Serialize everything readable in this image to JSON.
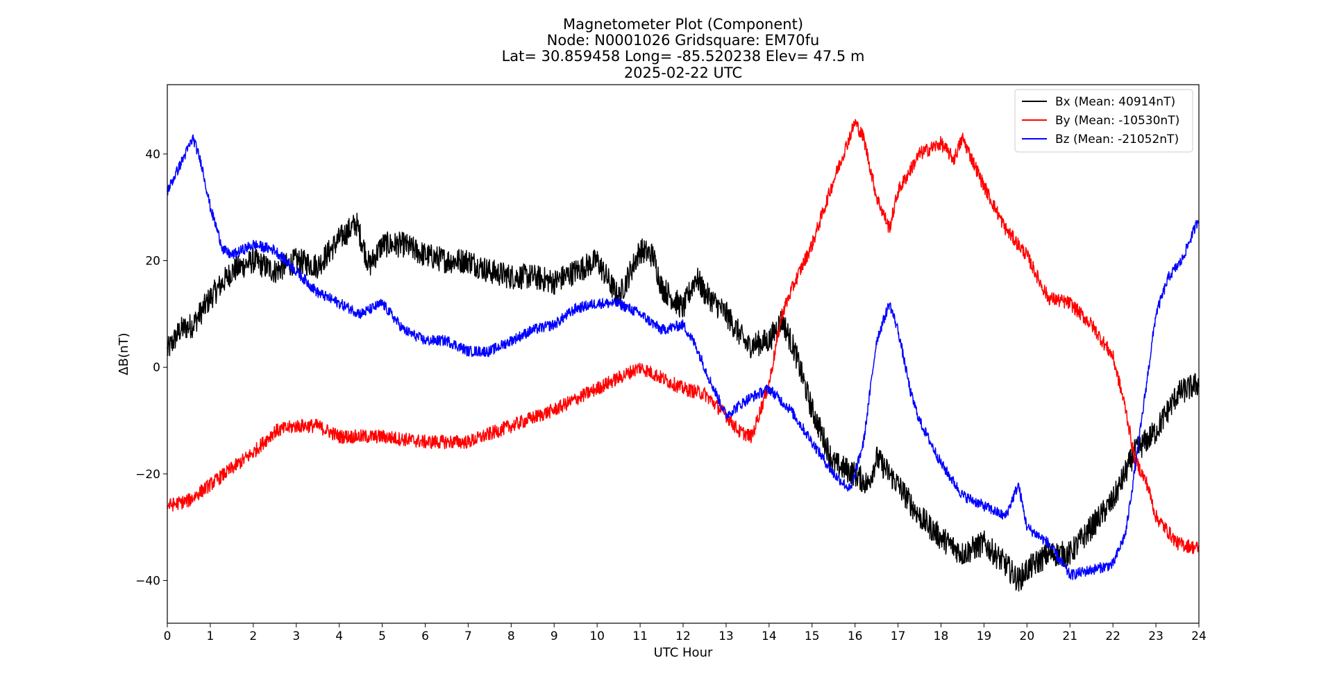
{
  "chart_data": {
    "type": "line",
    "title_lines": [
      "Magnetometer Plot (Component)",
      "Node:  N0001026     Gridsquare:  EM70fu",
      "Lat= 30.859458    Long= -85.520238    Elev= 47.5 m",
      "2025-02-22  UTC"
    ],
    "xlabel": "UTC Hour",
    "ylabel": "ΔB(nT)",
    "xlim": [
      0,
      24
    ],
    "ylim": [
      -48,
      53
    ],
    "xticks": [
      0,
      1,
      2,
      3,
      4,
      5,
      6,
      7,
      8,
      9,
      10,
      11,
      12,
      13,
      14,
      15,
      16,
      17,
      18,
      19,
      20,
      21,
      22,
      23,
      24
    ],
    "yticks": [
      -40,
      -20,
      0,
      20,
      40
    ],
    "ytick_labels": [
      "−40",
      "−20",
      "0",
      "20",
      "40"
    ],
    "grid": false,
    "legend_position": "upper-right",
    "series": [
      {
        "name": "Bx (Mean: 40914nT)",
        "color": "#000000",
        "noise": 2.4,
        "x": [
          0,
          0.3,
          0.6,
          1.0,
          1.5,
          2.0,
          2.5,
          3.0,
          3.5,
          4.0,
          4.4,
          4.7,
          5.0,
          5.5,
          6.0,
          6.5,
          7.0,
          7.5,
          8.0,
          8.5,
          9.0,
          9.5,
          10.0,
          10.5,
          11.0,
          11.3,
          11.5,
          12.0,
          12.3,
          12.5,
          13.0,
          13.5,
          14.0,
          14.3,
          14.6,
          15.0,
          15.5,
          16.0,
          16.3,
          16.5,
          17.0,
          17.5,
          18.0,
          18.5,
          19.0,
          19.5,
          19.8,
          20.0,
          20.5,
          21.0,
          21.5,
          22.0,
          22.5,
          23.0,
          23.5,
          24.0
        ],
        "y": [
          3,
          7,
          8,
          13,
          18,
          20,
          18,
          20,
          19,
          24,
          27,
          19,
          23,
          23,
          21,
          20,
          20,
          18,
          17,
          17,
          16,
          18,
          20,
          13,
          22,
          21,
          15,
          11,
          17,
          14,
          10,
          4,
          5,
          9,
          3,
          -8,
          -18,
          -20,
          -22,
          -17,
          -22,
          -28,
          -32,
          -35,
          -33,
          -37,
          -40,
          -38,
          -35,
          -35,
          -30,
          -25,
          -16,
          -12,
          -5,
          -3
        ]
      },
      {
        "name": "By (Mean: -10530nT)",
        "color": "#ff0000",
        "noise": 1.3,
        "x": [
          0,
          0.5,
          1.0,
          1.5,
          2.0,
          2.5,
          3.0,
          3.5,
          4.0,
          5.0,
          6.0,
          7.0,
          8.0,
          9.0,
          10.0,
          10.5,
          11.0,
          11.5,
          12.0,
          12.5,
          13.0,
          13.3,
          13.6,
          14.0,
          14.3,
          14.6,
          15.0,
          15.5,
          16.0,
          16.2,
          16.5,
          16.8,
          17.0,
          17.5,
          18.0,
          18.3,
          18.5,
          19.0,
          19.5,
          20.0,
          20.3,
          20.5,
          21.0,
          21.5,
          22.0,
          22.3,
          22.5,
          22.8,
          23.0,
          23.5,
          24.0
        ],
        "y": [
          -26,
          -25,
          -22,
          -19,
          -16,
          -12,
          -11,
          -11,
          -13,
          -13,
          -14,
          -14,
          -11,
          -8,
          -4,
          -2,
          0,
          -2,
          -4,
          -5,
          -9,
          -12,
          -13,
          -3,
          10,
          16,
          23,
          35,
          46,
          43,
          32,
          26,
          33,
          40,
          42,
          39,
          43,
          34,
          26,
          21,
          16,
          13,
          12,
          8,
          2,
          -8,
          -17,
          -22,
          -28,
          -33,
          -34
        ]
      },
      {
        "name": "Bz (Mean: -21052nT)",
        "color": "#0000ff",
        "noise": 1.0,
        "x": [
          0,
          0.3,
          0.6,
          0.8,
          1.0,
          1.3,
          1.5,
          2.0,
          2.5,
          3.0,
          3.5,
          4.0,
          4.5,
          5.0,
          5.5,
          6.0,
          6.5,
          7.0,
          7.5,
          8.0,
          8.5,
          9.0,
          9.5,
          10.0,
          10.5,
          11.0,
          11.5,
          12.0,
          12.3,
          12.6,
          13.0,
          13.5,
          14.0,
          14.5,
          15.0,
          15.5,
          15.9,
          16.2,
          16.5,
          16.8,
          17.0,
          17.3,
          17.5,
          18.0,
          18.5,
          19.0,
          19.5,
          19.8,
          20.0,
          20.5,
          21.0,
          21.5,
          22.0,
          22.3,
          22.6,
          23.0,
          23.3,
          23.6,
          24.0
        ],
        "y": [
          33,
          38,
          43,
          38,
          30,
          22,
          21,
          23,
          22,
          18,
          14,
          12,
          10,
          12,
          7,
          5,
          5,
          3,
          3,
          5,
          7,
          8,
          11,
          12,
          12,
          10,
          7,
          8,
          4,
          -2,
          -9,
          -6,
          -4,
          -8,
          -14,
          -20,
          -23,
          -14,
          5,
          12,
          7,
          -5,
          -10,
          -18,
          -24,
          -26,
          -28,
          -22,
          -30,
          -33,
          -39,
          -38,
          -37,
          -31,
          -14,
          10,
          17,
          20,
          28
        ]
      }
    ]
  }
}
